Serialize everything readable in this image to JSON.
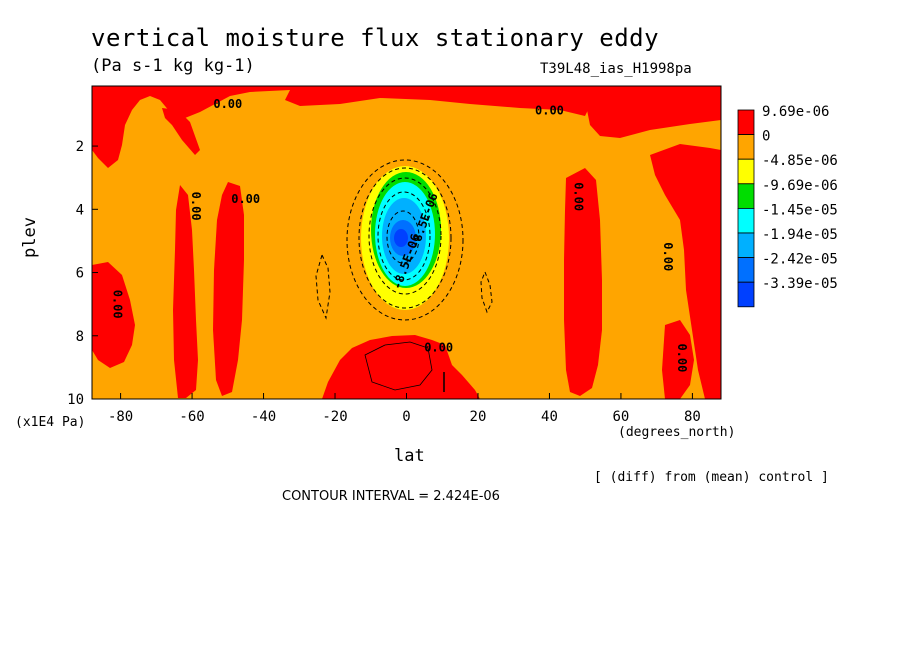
{
  "chart_data": {
    "type": "heatmap",
    "title": "vertical moisture flux stationary eddy",
    "units": "(Pa s-1 kg kg-1)",
    "run_id": "T39L48_ias_H1998pa",
    "xlabel": "lat",
    "xlabel_unit": "(degrees_north)",
    "ylabel": "plev",
    "ylabel_unit": "(x1E4 Pa)",
    "xlim": [
      -88,
      88
    ],
    "ylim": [
      10,
      0.1
    ],
    "x_ticks": [
      -80,
      -60,
      -40,
      -20,
      0,
      20,
      40,
      60,
      80
    ],
    "y_ticks": [
      2,
      4,
      6,
      8,
      10
    ],
    "diff_note": "[ (diff) from (mean) control ]",
    "contour_interval": "CONTOUR INTERVAL = 2.424E-06",
    "legend": {
      "placement": "right",
      "levels": [
        {
          "label": "9.69e-06",
          "color": "#ff0000"
        },
        {
          "label": "0",
          "color": "#ffa500"
        },
        {
          "label": "-4.85e-06",
          "color": "#ffff00"
        },
        {
          "label": "-9.69e-06",
          "color": "#00dd00"
        },
        {
          "label": "-1.45e-05",
          "color": "#00ffff"
        },
        {
          "label": "-1.94e-05",
          "color": "#00b0ff"
        },
        {
          "label": "-2.42e-05",
          "color": "#0070ff"
        },
        {
          "label": "-3.39e-05",
          "color": "#0040ff"
        }
      ]
    },
    "contour_labels": [
      {
        "text": "0.00",
        "lat": -50,
        "plev": 0.8
      },
      {
        "text": "0.00",
        "lat": 40,
        "plev": 1.0
      },
      {
        "text": "0.00",
        "lat": -82,
        "plev": 7.0
      },
      {
        "text": "0.00",
        "lat": -60,
        "plev": 3.9
      },
      {
        "text": "0.00",
        "lat": -45,
        "plev": 3.8
      },
      {
        "text": "0.00",
        "lat": 47,
        "plev": 3.6
      },
      {
        "text": "0.00",
        "lat": 72,
        "plev": 5.5
      },
      {
        "text": "0.00",
        "lat": 76,
        "plev": 8.7
      },
      {
        "text": "0.00",
        "lat": 9,
        "plev": 8.5
      },
      {
        "text": "-8.5E-06",
        "lat": 6,
        "plev": 4.4
      },
      {
        "text": "-8.5E-06",
        "lat": 1,
        "plev": 5.7
      }
    ]
  }
}
